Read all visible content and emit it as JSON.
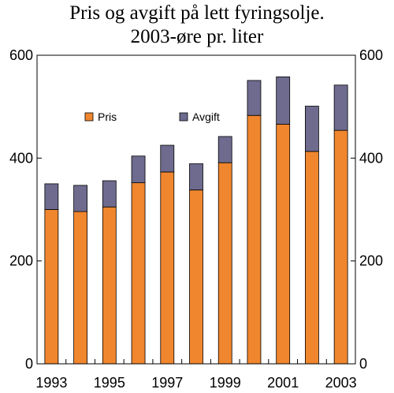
{
  "chart_data": {
    "type": "bar",
    "stacked": true,
    "title": "Pris og avgift på lett fyringsolje.",
    "subtitle": "2003-øre pr. liter",
    "categories": [
      "1993",
      "1994",
      "1995",
      "1996",
      "1997",
      "1998",
      "1999",
      "2000",
      "2001",
      "2002",
      "2003"
    ],
    "x_tick_labels": [
      "1993",
      "1995",
      "1997",
      "1999",
      "2001",
      "2003"
    ],
    "y_ticks": [
      0,
      200,
      400,
      600
    ],
    "ylim": [
      0,
      600
    ],
    "grid": false,
    "legend_position": "top-left-inside",
    "series": [
      {
        "name": "Pris",
        "color": "#F0862E",
        "values": [
          300,
          296,
          305,
          352,
          373,
          338,
          391,
          483,
          466,
          413,
          454
        ]
      },
      {
        "name": "Avgift",
        "color": "#6E6B8F",
        "values": [
          50,
          51,
          51,
          52,
          52,
          51,
          51,
          68,
          92,
          88,
          88
        ]
      }
    ]
  }
}
